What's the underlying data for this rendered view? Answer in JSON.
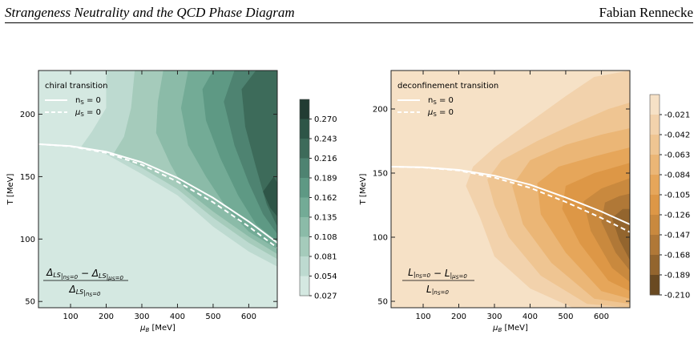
{
  "header": {
    "title": "Strangeness Neutrality and the QCD Phase Diagram",
    "author": "Fabian Rennecke"
  },
  "legend_line_ns": "n",
  "legend_line_mus": "μ",
  "chart_data": [
    {
      "type": "heatmap",
      "legend_title": "chiral transition",
      "legend_entries": [
        "n_S = 0",
        "μ_S = 0"
      ],
      "xlabel": "μ_B [MeV]",
      "ylabel": "T [MeV]",
      "xlim": [
        10,
        680
      ],
      "ylim": [
        45,
        235
      ],
      "x_ticks": [
        100,
        200,
        300,
        400,
        500,
        600
      ],
      "y_ticks": [
        50,
        100,
        150,
        200
      ],
      "colorbar_ticks": [
        "0.270",
        "0.243",
        "0.216",
        "0.189",
        "0.162",
        "0.135",
        "0.108",
        "0.081",
        "0.054",
        "0.027"
      ],
      "colorbar_colors": [
        "#223c33",
        "#2e5547",
        "#3d6b5a",
        "#4e8371",
        "#5e9984",
        "#73ab96",
        "#8bbba8",
        "#a5cbbb",
        "#bddad0",
        "#d4e8e1"
      ],
      "base_color": "#d4e8e1",
      "formula": "(Δ_LS|_{n_S=0} − Δ_LS|_{μ_S=0}) / Δ_LS|_{n_S=0}",
      "curve_ns0": {
        "x": [
          10,
          100,
          200,
          300,
          400,
          500,
          600,
          680
        ],
        "y": [
          176,
          174.5,
          170,
          161.5,
          149,
          133,
          114,
          97
        ]
      },
      "curve_mus0": {
        "x": [
          10,
          100,
          200,
          300,
          400,
          500,
          600,
          680
        ],
        "y": [
          176,
          174.3,
          169,
          159.5,
          146,
          129.5,
          110,
          93
        ]
      },
      "bands": [
        {
          "color": "#bddad0",
          "pts": [
            [
              200,
              235
            ],
            [
              680,
              235
            ],
            [
              680,
              78
            ],
            [
              600,
              90
            ],
            [
              500,
              110
            ],
            [
              400,
              135
            ],
            [
              300,
              152
            ],
            [
              200,
              168
            ],
            [
              130,
              174
            ],
            [
              160,
              186
            ],
            [
              200,
              205
            ]
          ]
        },
        {
          "color": "#a5cbbb",
          "pts": [
            [
              280,
              235
            ],
            [
              680,
              235
            ],
            [
              680,
              84
            ],
            [
              600,
              97
            ],
            [
              500,
              117
            ],
            [
              400,
              140
            ],
            [
              300,
              157
            ],
            [
              220,
              168
            ],
            [
              250,
              182
            ],
            [
              270,
              205
            ]
          ]
        },
        {
          "color": "#8bbba8",
          "pts": [
            [
              360,
              235
            ],
            [
              680,
              235
            ],
            [
              680,
              88
            ],
            [
              600,
              102
            ],
            [
              500,
              122
            ],
            [
              420,
              140
            ],
            [
              380,
              160
            ],
            [
              340,
              185
            ],
            [
              345,
              210
            ]
          ]
        },
        {
          "color": "#73ab96",
          "pts": [
            [
              430,
              235
            ],
            [
              680,
              235
            ],
            [
              680,
              92
            ],
            [
              600,
              106
            ],
            [
              540,
              124
            ],
            [
              480,
              150
            ],
            [
              430,
              175
            ],
            [
              410,
              205
            ]
          ]
        },
        {
          "color": "#5e9984",
          "pts": [
            [
              500,
              235
            ],
            [
              680,
              235
            ],
            [
              680,
              98
            ],
            [
              620,
              112
            ],
            [
              570,
              135
            ],
            [
              520,
              165
            ],
            [
              480,
              195
            ],
            [
              470,
              220
            ]
          ]
        },
        {
          "color": "#4e8371",
          "pts": [
            [
              560,
              235
            ],
            [
              680,
              235
            ],
            [
              680,
              104
            ],
            [
              640,
              120
            ],
            [
              600,
              145
            ],
            [
              560,
              175
            ],
            [
              530,
              210
            ]
          ]
        },
        {
          "color": "#3d6b5a",
          "pts": [
            [
              620,
              235
            ],
            [
              680,
              235
            ],
            [
              680,
              110
            ],
            [
              650,
              128
            ],
            [
              620,
              158
            ],
            [
              590,
              190
            ],
            [
              580,
              220
            ]
          ]
        },
        {
          "color": "#2e5547",
          "pts": [
            [
              670,
              150
            ],
            [
              680,
              145
            ],
            [
              680,
              118
            ],
            [
              660,
              125
            ],
            [
              640,
              138
            ]
          ]
        }
      ]
    },
    {
      "type": "heatmap",
      "legend_title": "deconfinement transition",
      "legend_entries": [
        "n_S = 0",
        "μ_S = 0"
      ],
      "xlabel": "μ_B [MeV]",
      "ylabel": "T [MeV]",
      "xlim": [
        10,
        680
      ],
      "ylim": [
        45,
        230
      ],
      "x_ticks": [
        100,
        200,
        300,
        400,
        500,
        600
      ],
      "y_ticks": [
        50,
        100,
        150,
        200
      ],
      "colorbar_ticks": [
        "-0.021",
        "-0.042",
        "-0.063",
        "-0.084",
        "-0.105",
        "-0.126",
        "-0.147",
        "-0.168",
        "-0.189",
        "-0.210"
      ],
      "colorbar_colors": [
        "#f6e1c6",
        "#f2d2ac",
        "#efc592",
        "#ebb676",
        "#e6a65a",
        "#dd9746",
        "#c9893e",
        "#b07837",
        "#93652e",
        "#6a4a22"
      ],
      "base_color": "#f6e1c6",
      "formula": "(L|_{n_S=0} − L|_{μ_S=0}) / L|_{n_S=0}",
      "curve_ns0": {
        "x": [
          10,
          100,
          200,
          300,
          400,
          500,
          600,
          680
        ],
        "y": [
          155,
          154.5,
          152.5,
          148,
          141,
          131,
          120,
          110
        ]
      },
      "curve_mus0": {
        "x": [
          10,
          100,
          200,
          300,
          400,
          500,
          600,
          680
        ],
        "y": [
          155,
          154.4,
          152,
          146.5,
          138.5,
          127.5,
          115,
          104
        ]
      },
      "bands": [
        {
          "color": "#f2d2ac",
          "pts": [
            [
              680,
              230
            ],
            [
              680,
              45
            ],
            [
              520,
              45
            ],
            [
              400,
              60
            ],
            [
              300,
              85
            ],
            [
              260,
              115
            ],
            [
              220,
              140
            ],
            [
              240,
              155
            ],
            [
              300,
              170
            ],
            [
              400,
              190
            ],
            [
              500,
              210
            ],
            [
              580,
              225
            ]
          ]
        },
        {
          "color": "#efc592",
          "pts": [
            [
              680,
              205
            ],
            [
              680,
              45
            ],
            [
              560,
              48
            ],
            [
              430,
              70
            ],
            [
              340,
              100
            ],
            [
              300,
              125
            ],
            [
              280,
              145
            ],
            [
              320,
              160
            ],
            [
              420,
              175
            ],
            [
              520,
              188
            ],
            [
              620,
              200
            ]
          ]
        },
        {
          "color": "#ebb676",
          "pts": [
            [
              680,
              185
            ],
            [
              680,
              48
            ],
            [
              580,
              52
            ],
            [
              460,
              80
            ],
            [
              380,
              110
            ],
            [
              350,
              140
            ],
            [
              400,
              160
            ],
            [
              500,
              172
            ],
            [
              600,
              180
            ]
          ]
        },
        {
          "color": "#e6a65a",
          "pts": [
            [
              680,
              170
            ],
            [
              680,
              52
            ],
            [
              600,
              58
            ],
            [
              500,
              88
            ],
            [
              430,
              118
            ],
            [
              420,
              142
            ],
            [
              480,
              155
            ],
            [
              580,
              163
            ]
          ]
        },
        {
          "color": "#dd9746",
          "pts": [
            [
              680,
              158
            ],
            [
              680,
              58
            ],
            [
              620,
              66
            ],
            [
              540,
              95
            ],
            [
              490,
              122
            ],
            [
              500,
              140
            ],
            [
              580,
              150
            ]
          ]
        },
        {
          "color": "#c9893e",
          "pts": [
            [
              680,
              146
            ],
            [
              680,
              65
            ],
            [
              630,
              76
            ],
            [
              570,
              105
            ],
            [
              550,
              128
            ],
            [
              600,
              138
            ]
          ]
        },
        {
          "color": "#b07837",
          "pts": [
            [
              680,
              134
            ],
            [
              680,
              74
            ],
            [
              640,
              88
            ],
            [
              600,
              112
            ],
            [
              610,
              127
            ],
            [
              650,
              132
            ]
          ]
        },
        {
          "color": "#93652e",
          "pts": [
            [
              680,
              122
            ],
            [
              680,
              82
            ],
            [
              650,
              98
            ],
            [
              630,
              115
            ],
            [
              660,
              122
            ]
          ]
        }
      ]
    }
  ]
}
